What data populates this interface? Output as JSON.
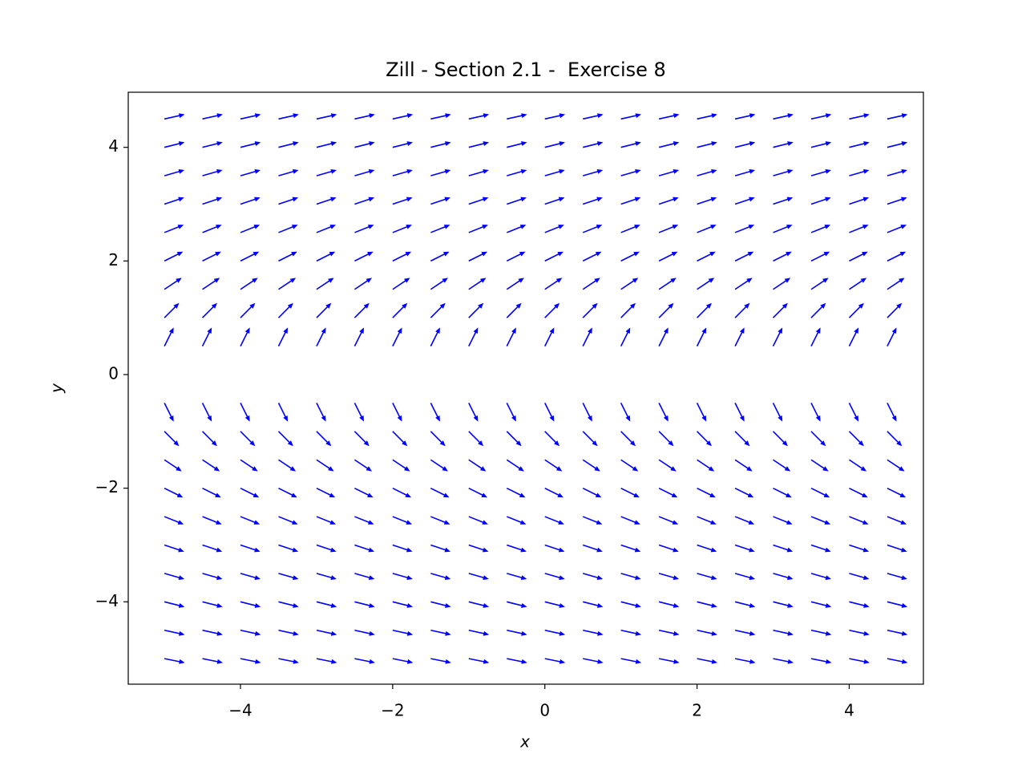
{
  "chart_data": {
    "type": "quiver",
    "title": "Zill - Section 2.1 -  Exercise 8",
    "x_label": "x",
    "y_label": "y",
    "color": "#0000ff",
    "x": [
      -5,
      -4.5,
      -4,
      -3.5,
      -3,
      -2.5,
      -2,
      -1.5,
      -1,
      -0.5,
      0,
      0.5,
      1,
      1.5,
      2,
      2.5,
      3,
      3.5,
      4,
      4.5
    ],
    "y": [
      -5,
      -4.5,
      -4,
      -3.5,
      -3,
      -2.5,
      -2,
      -1.5,
      -1,
      -0.5,
      0,
      0.5,
      1,
      1.5,
      2,
      2.5,
      3,
      3.5,
      4,
      4.5
    ],
    "u": [
      0.981,
      0.976,
      0.97,
      0.962,
      0.949,
      0.928,
      0.894,
      0.832,
      0.707,
      0.447,
      null,
      0.447,
      0.707,
      0.832,
      0.894,
      0.928,
      0.949,
      0.962,
      0.97,
      0.976
    ],
    "v": [
      -0.196,
      -0.217,
      -0.243,
      -0.275,
      -0.316,
      -0.371,
      -0.447,
      -0.555,
      -0.707,
      -0.894,
      null,
      0.894,
      0.707,
      0.555,
      0.447,
      0.371,
      0.316,
      0.275,
      0.243,
      0.217
    ],
    "xlim": [
      -5.475,
      4.975
    ],
    "ylim": [
      -5.45,
      4.97
    ],
    "xticks": [
      {
        "value": -4,
        "label": "−4"
      },
      {
        "value": -2,
        "label": "−2"
      },
      0,
      2,
      4
    ],
    "yticks": [
      {
        "value": -4,
        "label": "−4"
      },
      {
        "value": -2,
        "label": "−2"
      },
      0,
      2,
      4
    ]
  }
}
